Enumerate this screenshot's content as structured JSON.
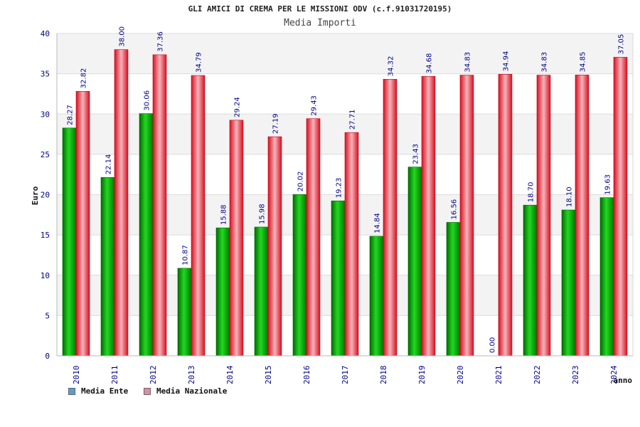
{
  "chart_data": {
    "type": "bar",
    "title": "GLI AMICI DI CREMA PER LE MISSIONI ODV (c.f.91031720195)",
    "subtitle": "Media Importi",
    "xlabel": "anno",
    "ylabel": "Euro",
    "ylim": [
      0,
      40
    ],
    "yticks": [
      0,
      5,
      10,
      15,
      20,
      25,
      30,
      35,
      40
    ],
    "grid": true,
    "legend_position": "bottom-left",
    "categories": [
      "2010",
      "2011",
      "2012",
      "2013",
      "2014",
      "2015",
      "2016",
      "2017",
      "2018",
      "2019",
      "2020",
      "2021",
      "2022",
      "2023",
      "2024"
    ],
    "series": [
      {
        "name": "Media Ente",
        "color": "#00b000",
        "legend_color": "#5b9bd5",
        "values": [
          28.27,
          22.14,
          30.06,
          10.87,
          15.88,
          15.98,
          20.02,
          19.23,
          14.84,
          23.43,
          16.56,
          0.0,
          18.7,
          18.1,
          19.63
        ],
        "labels": [
          "28.27",
          "22.14",
          "30.06",
          "10.87",
          "15.88",
          "15.98",
          "20.02",
          "19.23",
          "14.84",
          "23.43",
          "16.56",
          "0.00",
          "18.70",
          "18.10",
          "19.63"
        ]
      },
      {
        "name": "Media Nazionale",
        "color": "#ee1c2e",
        "legend_color": "#e08aa8",
        "values": [
          32.82,
          38.0,
          37.36,
          34.79,
          29.24,
          27.19,
          29.43,
          27.71,
          34.32,
          34.68,
          34.83,
          34.94,
          34.83,
          34.85,
          37.05
        ],
        "labels": [
          "32.82",
          "38.00",
          "37.36",
          "34.79",
          "29.24",
          "27.19",
          "29.43",
          "27.71",
          "34.32",
          "34.68",
          "34.83",
          "34.94",
          "34.83",
          "34.85",
          "37.05"
        ]
      }
    ]
  }
}
